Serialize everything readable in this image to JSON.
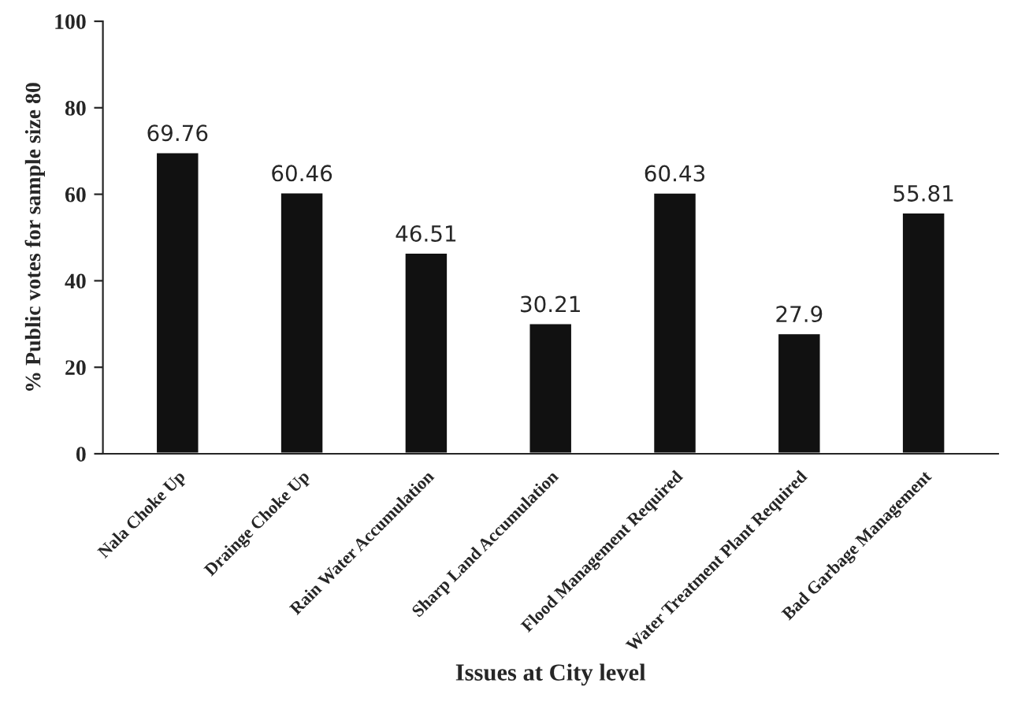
{
  "chart_data": {
    "type": "bar",
    "xlabel": "Issues at City level",
    "ylabel": "% Public votes for sample size 80",
    "categories": [
      "Nala Choke Up",
      "Drainge Choke Up",
      "Rain Water Accumulation",
      "Sharp Land Accumulation",
      "Flood Management Required",
      "Water Treatment Plant Required",
      "Bad Garbage Management"
    ],
    "values": [
      69.76,
      60.46,
      46.51,
      30.21,
      60.43,
      27.9,
      55.81
    ],
    "color": "#111111",
    "ylim": [
      0,
      100
    ],
    "yticks": [
      0,
      20,
      40,
      60,
      80,
      100
    ],
    "data_labels": true,
    "grid": false
  }
}
